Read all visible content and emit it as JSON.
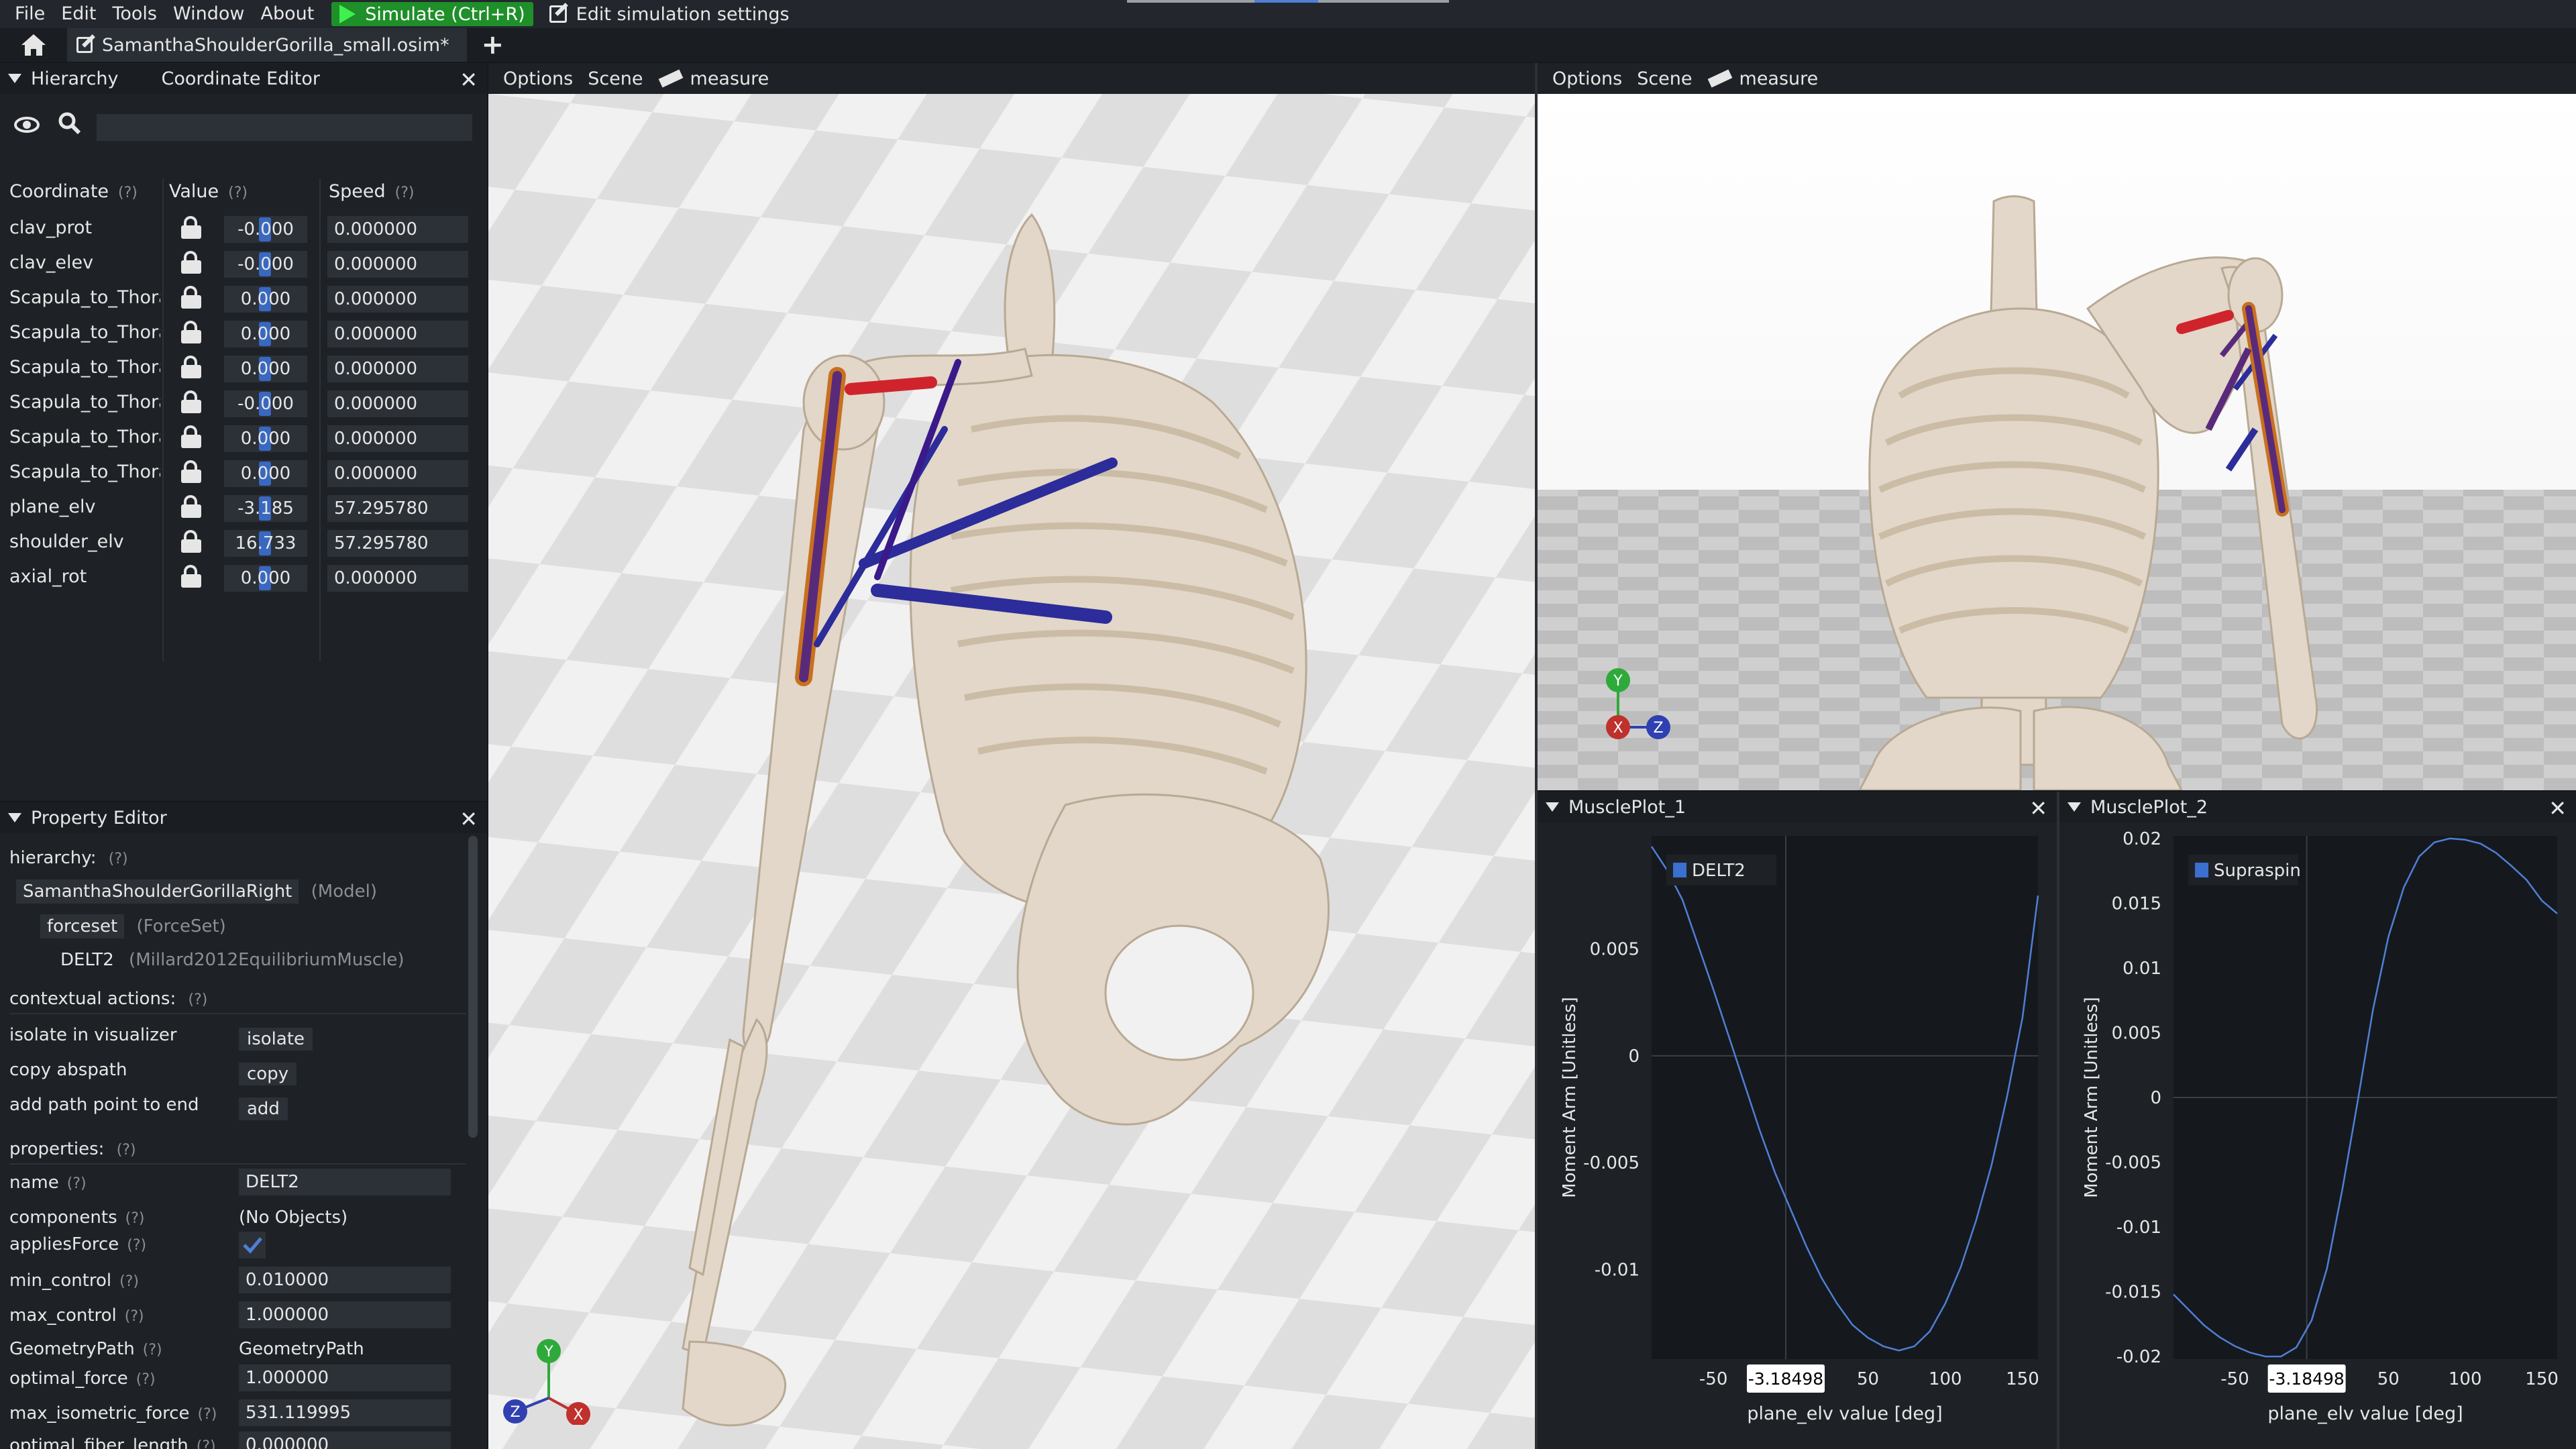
{
  "menubar": {
    "items": [
      "File",
      "Edit",
      "Tools",
      "Window",
      "About"
    ],
    "simulate_label": "Simulate (Ctrl+R)",
    "edit_sim_label": "Edit simulation settings"
  },
  "tabs": {
    "file_tab": "SamanthaShoulderGorilla_small.osim*",
    "add": "+"
  },
  "left_top": {
    "tab_hierarchy": "Hierarchy",
    "tab_coordinate_editor": "Coordinate Editor",
    "close": "✕",
    "headers": {
      "coordinate": "Coordinate",
      "value": "Value",
      "speed": "Speed",
      "help": "(?)"
    },
    "coordinates": [
      {
        "name": "clav_prot",
        "value": "-0.000",
        "speed": "0.000000"
      },
      {
        "name": "clav_elev",
        "value": "-0.000",
        "speed": "0.000000"
      },
      {
        "name": "Scapula_to_Thora",
        "value": "0.000",
        "speed": "0.000000"
      },
      {
        "name": "Scapula_to_Thora",
        "value": "0.000",
        "speed": "0.000000"
      },
      {
        "name": "Scapula_to_Thora",
        "value": "0.000",
        "speed": "0.000000"
      },
      {
        "name": "Scapula_to_Thora",
        "value": "-0.000",
        "speed": "0.000000"
      },
      {
        "name": "Scapula_to_Thora",
        "value": "0.000",
        "speed": "0.000000"
      },
      {
        "name": "Scapula_to_Thora",
        "value": "0.000",
        "speed": "0.000000"
      },
      {
        "name": "plane_elv",
        "value": "-3.185",
        "speed": "57.295780"
      },
      {
        "name": "shoulder_elv",
        "value": "16.733",
        "speed": "57.295780"
      },
      {
        "name": "axial_rot",
        "value": "0.000",
        "speed": "0.000000"
      }
    ]
  },
  "property_editor": {
    "title": "Property Editor",
    "close": "✕",
    "hierarchy_label": "hierarchy:",
    "help": "(?)",
    "model_name": "SamanthaShoulderGorillaRight",
    "model_type": "(Model)",
    "forceset_name": "forceset",
    "forceset_type": "(ForceSet)",
    "muscle_name": "DELT2",
    "muscle_type": "(Millard2012EquilibriumMuscle)",
    "contextual_label": "contextual actions:",
    "actions": [
      {
        "label": "isolate in visualizer",
        "button": "isolate"
      },
      {
        "label": "copy abspath",
        "button": "copy"
      },
      {
        "label": "add path point to end",
        "button": "add"
      }
    ],
    "properties_label": "properties:",
    "props": {
      "name_label": "name",
      "name_value": "DELT2",
      "components_label": "components",
      "components_value": "(No Objects)",
      "applies_force_label": "appliesForce",
      "min_control_label": "min_control",
      "min_control_value": "0.010000",
      "max_control_label": "max_control",
      "max_control_value": "1.000000",
      "geometry_path_label": "GeometryPath",
      "geometry_path_value": "GeometryPath",
      "optimal_force_label": "optimal_force",
      "optimal_force_value": "1.000000",
      "max_iso_label": "max_isometric_force",
      "max_iso_value": "531.119995",
      "opt_fiber_label": "optimal_fiber_length",
      "opt_fiber_value": "0.000000"
    }
  },
  "viewport1": {
    "options": "Options",
    "scene": "Scene",
    "measure": "measure",
    "axes": {
      "y": "Y",
      "x": "X",
      "z": "Z"
    }
  },
  "viewport2": {
    "options": "Options",
    "scene": "Scene",
    "measure": "measure",
    "axes": {
      "y": "Y",
      "x": "X",
      "z": "Z"
    }
  },
  "colors": {
    "bone": "#e2d7c8",
    "muscle_red": "#d0242c",
    "muscle_blue": "#2c2c9a",
    "muscle_orange": "#c8701f",
    "accent_blue": "#3b6fd0",
    "plot_line": "#4f7fd6"
  },
  "chart_data": [
    {
      "type": "line",
      "panel_title": "MusclePlot_1",
      "series": [
        {
          "name": "DELT2",
          "x": [
            -90,
            -80,
            -70,
            -60,
            -50,
            -40,
            -30,
            -20,
            -10,
            0,
            10,
            20,
            30,
            40,
            50,
            60,
            70,
            80,
            90,
            100,
            110,
            120,
            130,
            140,
            150,
            160
          ],
          "values": [
            0.0098,
            0.0087,
            0.0073,
            0.0052,
            0.0031,
            0.0009,
            -0.0013,
            -0.0035,
            -0.0055,
            -0.0072,
            -0.0089,
            -0.0104,
            -0.0116,
            -0.0126,
            -0.0132,
            -0.0136,
            -0.0138,
            -0.0136,
            -0.0129,
            -0.0116,
            -0.0099,
            -0.0077,
            -0.0051,
            -0.0019,
            0.0018,
            0.0075
          ]
        }
      ],
      "xlabel": "plane_elv value [deg]",
      "ylabel": "Moment Arm [Unitless]",
      "xlim": [
        -90,
        160
      ],
      "ylim": [
        -0.0142,
        0.0103
      ],
      "xticks": [
        -50,
        50,
        100,
        150
      ],
      "yticks": [
        0.005,
        0,
        -0.005,
        -0.01
      ],
      "ytick_labels": [
        "0.005",
        "0",
        "-0.005",
        "-0.01"
      ],
      "cursor_x": -3.18498,
      "cursor_label": "-3.18498",
      "grid": false,
      "legend": "top-left"
    },
    {
      "type": "line",
      "panel_title": "MusclePlot_2",
      "series": [
        {
          "name": "Supraspin",
          "x": [
            -90,
            -80,
            -70,
            -60,
            -50,
            -40,
            -30,
            -20,
            -10,
            0,
            10,
            20,
            30,
            40,
            50,
            60,
            70,
            80,
            90,
            100,
            110,
            120,
            130,
            140,
            150,
            160
          ],
          "values": [
            -0.0152,
            -0.0164,
            -0.0176,
            -0.0185,
            -0.0192,
            -0.0197,
            -0.02,
            -0.02,
            -0.0193,
            -0.0172,
            -0.0132,
            -0.0071,
            -0.0003,
            0.0068,
            0.0124,
            0.0162,
            0.0186,
            0.0197,
            0.02,
            0.0199,
            0.0196,
            0.0189,
            0.0179,
            0.0168,
            0.0152,
            0.0142
          ]
        }
      ],
      "xlabel": "plane_elv value [deg]",
      "ylabel": "Moment Arm [Unitless]",
      "xlim": [
        -90,
        160
      ],
      "ylim": [
        -0.0202,
        0.0202
      ],
      "xticks": [
        -50,
        50,
        100,
        150
      ],
      "yticks": [
        0.02,
        0.015,
        0.01,
        0.005,
        0,
        -0.005,
        -0.01,
        -0.015,
        -0.02
      ],
      "ytick_labels": [
        "0.02",
        "0.015",
        "0.01",
        "0.005",
        "0",
        "-0.005",
        "-0.01",
        "-0.015",
        "-0.02"
      ],
      "cursor_x": -3.18498,
      "cursor_label": "-3.18498",
      "grid": false,
      "legend": "top-left"
    }
  ]
}
